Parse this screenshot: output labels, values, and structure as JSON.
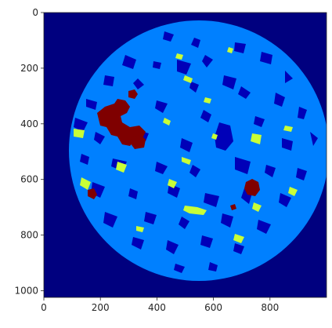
{
  "image": {
    "kind": "segmentation-map",
    "colormap": "jet",
    "x_extent": [
      0,
      1000
    ],
    "y_extent": [
      0,
      1024
    ],
    "palette": {
      "background": "#00007f",
      "pore": "#0000b8",
      "matrix": "#0080ff",
      "highlight": "#c8ff37",
      "hot": "#7f0000"
    }
  },
  "axes": {
    "x_ticks": [
      {
        "value": 0,
        "label": "0"
      },
      {
        "value": 200,
        "label": "200"
      },
      {
        "value": 400,
        "label": "400"
      },
      {
        "value": 600,
        "label": "600"
      },
      {
        "value": 800,
        "label": "800"
      }
    ],
    "y_ticks": [
      {
        "value": 0,
        "label": "0"
      },
      {
        "value": 200,
        "label": "200"
      },
      {
        "value": 400,
        "label": "400"
      },
      {
        "value": 600,
        "label": "600"
      },
      {
        "value": 800,
        "label": "800"
      },
      {
        "value": 1000,
        "label": "1000"
      }
    ]
  }
}
